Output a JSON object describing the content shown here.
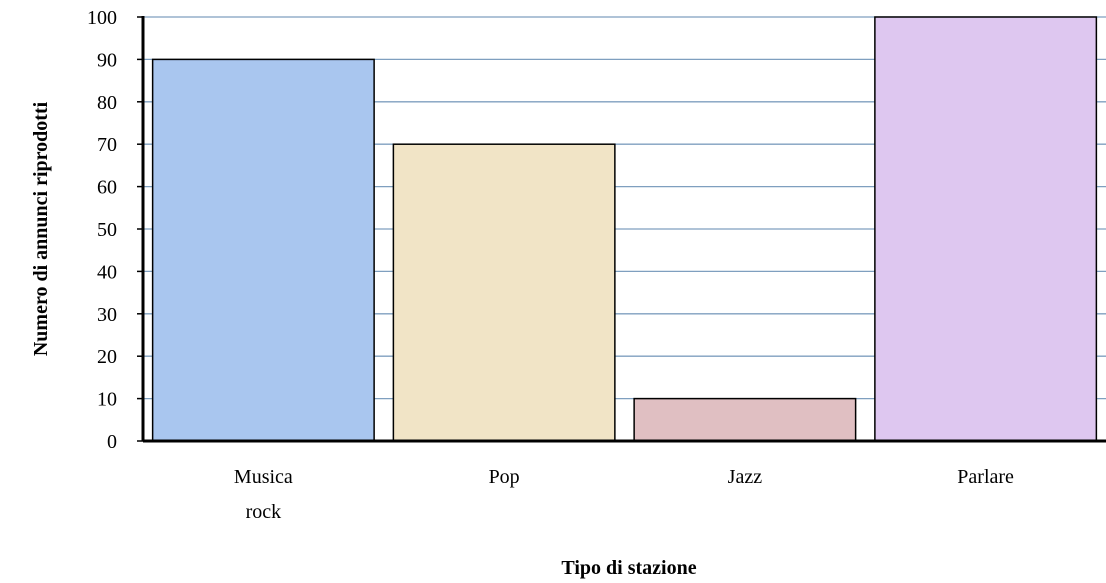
{
  "chart_data": {
    "type": "bar",
    "categories": [
      [
        "Musica",
        "rock"
      ],
      [
        "Pop"
      ],
      [
        "Jazz"
      ],
      [
        "Parlare"
      ]
    ],
    "values": [
      90,
      70,
      10,
      100
    ],
    "colors": [
      "#a9c6ef",
      "#f1e4c6",
      "#e0bfc2",
      "#dec7f0"
    ],
    "xlabel": "Tipo di stazione",
    "ylabel": "Numero di annunci riprodotti",
    "ylim": [
      0,
      100
    ],
    "yticks": [
      0,
      10,
      20,
      30,
      40,
      50,
      60,
      70,
      80,
      90,
      100
    ],
    "grid": true,
    "grid_color": "#7f9fbf"
  }
}
